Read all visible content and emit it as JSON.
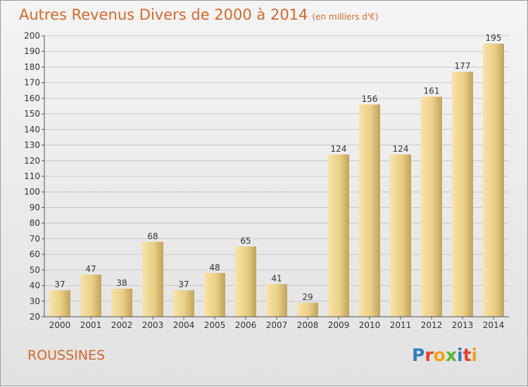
{
  "header": {
    "title": "Autres Revenus Divers de 2000 à 2014",
    "unit": "(en milliers d'€)"
  },
  "location": "ROUSSINES",
  "logo": {
    "text": "Proxiti",
    "colors": [
      "#2f7fc1",
      "#e8412a",
      "#f0a21c",
      "#5cb531",
      "#2f7fc1",
      "#e8412a",
      "#f0a21c"
    ]
  },
  "colors": {
    "title": "#d4692a",
    "bar_light": "#f6dc9a",
    "bar_dark": "#c7a85e",
    "gridline": "#c8c8c8",
    "text": "#333333"
  },
  "chart_data": {
    "type": "bar",
    "categories": [
      "2000",
      "2001",
      "2002",
      "2003",
      "2004",
      "2005",
      "2006",
      "2007",
      "2008",
      "2009",
      "2010",
      "2011",
      "2012",
      "2013",
      "2014"
    ],
    "values": [
      37,
      47,
      38,
      68,
      37,
      48,
      65,
      41,
      29,
      124,
      156,
      124,
      161,
      177,
      195
    ],
    "ylim": [
      20,
      200
    ],
    "yticks": [
      20,
      30,
      40,
      50,
      60,
      70,
      80,
      90,
      100,
      110,
      120,
      130,
      140,
      150,
      160,
      170,
      180,
      190,
      200
    ],
    "grid": true,
    "show_value_labels": true
  }
}
